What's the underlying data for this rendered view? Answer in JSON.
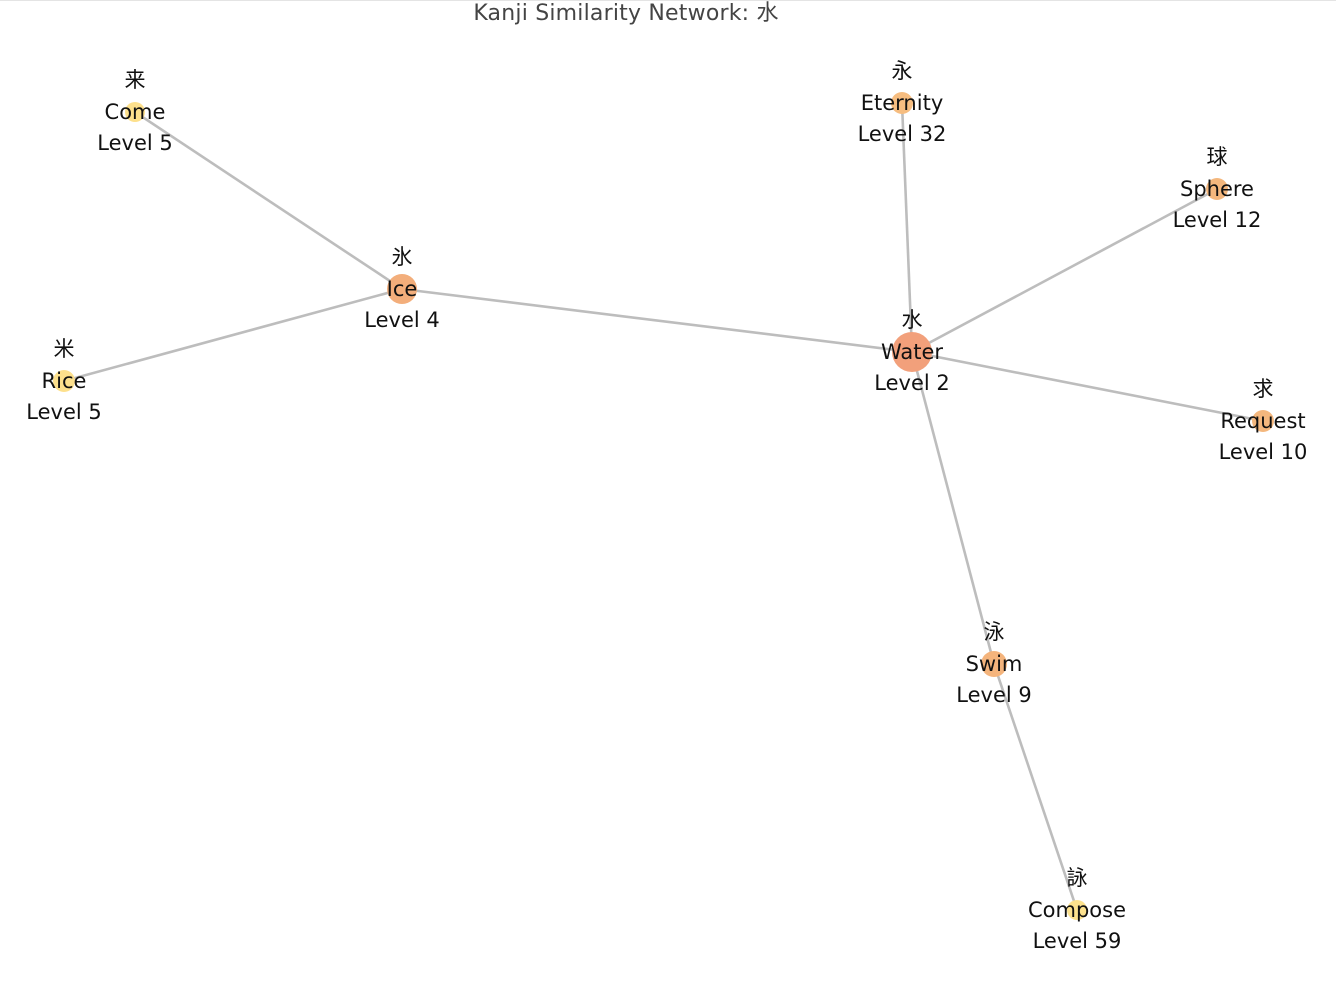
{
  "title": "Kanji Similarity Network: 水",
  "colors": {
    "edge": "#bdbdbd",
    "level_low": "#f2a07b",
    "level_mid": "#f4b27a",
    "level_high": "#fde28e"
  },
  "nodes": [
    {
      "id": "water",
      "kanji": "水",
      "meaning": "Water",
      "level_text": "Level 2",
      "level": 2,
      "color": "#f2a07b"
    },
    {
      "id": "ice",
      "kanji": "氷",
      "meaning": "Ice",
      "level_text": "Level 4",
      "level": 4,
      "color": "#f3ae7b"
    },
    {
      "id": "come",
      "kanji": "来",
      "meaning": "Come",
      "level_text": "Level 5",
      "level": 5,
      "color": "#fde08c"
    },
    {
      "id": "rice",
      "kanji": "米",
      "meaning": "Rice",
      "level_text": "Level 5",
      "level": 5,
      "color": "#fde08c"
    },
    {
      "id": "eternity",
      "kanji": "永",
      "meaning": "Eternity",
      "level_text": "Level 32",
      "level": 32,
      "color": "#f6bd80"
    },
    {
      "id": "sphere",
      "kanji": "球",
      "meaning": "Sphere",
      "level_text": "Level 12",
      "level": 12,
      "color": "#f4b77d"
    },
    {
      "id": "request",
      "kanji": "求",
      "meaning": "Request",
      "level_text": "Level 10",
      "level": 10,
      "color": "#f4b77d"
    },
    {
      "id": "swim",
      "kanji": "泳",
      "meaning": "Swim",
      "level_text": "Level 9",
      "level": 9,
      "color": "#f4b47c"
    },
    {
      "id": "compose",
      "kanji": "詠",
      "meaning": "Compose",
      "level_text": "Level 59",
      "level": 59,
      "color": "#fde28e"
    }
  ],
  "edges": [
    {
      "source": "water",
      "target": "ice"
    },
    {
      "source": "water",
      "target": "eternity"
    },
    {
      "source": "water",
      "target": "sphere"
    },
    {
      "source": "water",
      "target": "request"
    },
    {
      "source": "water",
      "target": "swim"
    },
    {
      "source": "ice",
      "target": "come"
    },
    {
      "source": "ice",
      "target": "rice"
    },
    {
      "source": "swim",
      "target": "compose"
    }
  ]
}
